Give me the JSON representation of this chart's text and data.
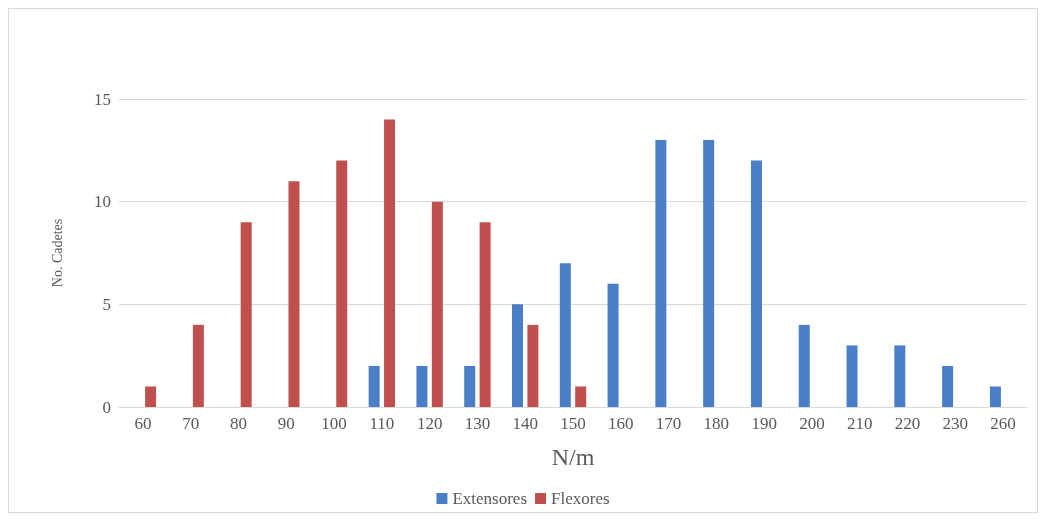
{
  "chart_data": {
    "type": "bar",
    "xlabel": "N/m",
    "ylabel": "No. Cadetes",
    "categories": [
      "60",
      "70",
      "80",
      "90",
      "100",
      "110",
      "120",
      "130",
      "140",
      "150",
      "160",
      "170",
      "180",
      "190",
      "200",
      "210",
      "220",
      "230",
      "260"
    ],
    "series": [
      {
        "name": "Extensores",
        "color": "#4a7ec6",
        "values": [
          0,
          0,
          0,
          0,
          0,
          2,
          2,
          2,
          5,
          7,
          6,
          13,
          13,
          12,
          4,
          3,
          3,
          2,
          1
        ]
      },
      {
        "name": "Flexores",
        "color": "#c0504d",
        "values": [
          1,
          4,
          9,
          11,
          12,
          14,
          10,
          9,
          4,
          1,
          0,
          0,
          0,
          0,
          0,
          0,
          0,
          0,
          0
        ]
      }
    ],
    "ylim": [
      0,
      15
    ],
    "yticks": [
      0,
      5,
      10,
      15
    ],
    "grid": "y",
    "legend": "bottom"
  }
}
